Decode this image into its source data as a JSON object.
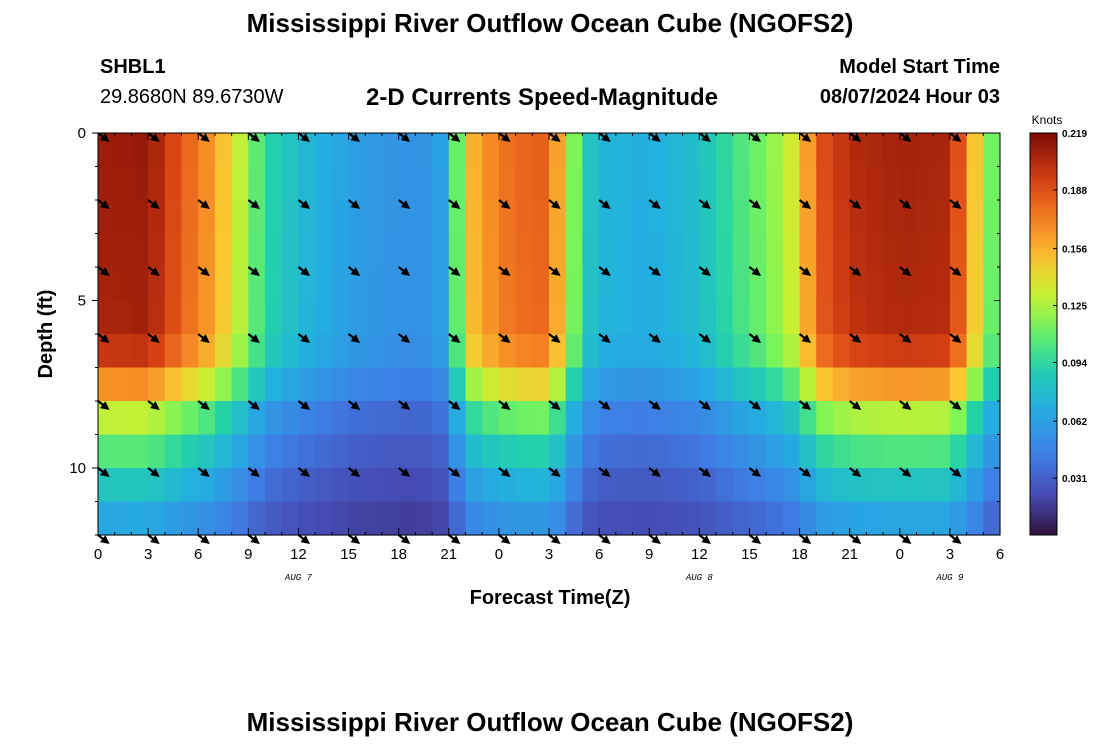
{
  "page": {
    "title": "Mississippi River Outflow Ocean Cube (NGOFS2)",
    "bottom_title": "Mississippi River Outflow Ocean Cube (NGOFS2)",
    "station_id": "SHBL1",
    "station_coords": "29.8680N  89.6730W",
    "plot_label": "2-D Currents Speed-Magnitude",
    "model_start_label": "Model Start Time",
    "model_start_time": "08/07/2024 Hour 03"
  },
  "chart_data": {
    "type": "heatmap",
    "title": "2-D Currents Speed-Magnitude",
    "xlabel": "Forecast Time(Z)",
    "ylabel": "Depth (ft)",
    "colorbar_unit": "Knots",
    "x_tick_labels": [
      "0",
      "3",
      "6",
      "9",
      "12",
      "15",
      "18",
      "21",
      "0",
      "3",
      "6",
      "9",
      "12",
      "15",
      "18",
      "21",
      "0",
      "3",
      "6"
    ],
    "x_hours": [
      0,
      3,
      6,
      9,
      12,
      15,
      18,
      21,
      24,
      27,
      30,
      33,
      36,
      39,
      42,
      45,
      48,
      51,
      54
    ],
    "xlim": [
      0,
      54
    ],
    "date_labels": [
      {
        "hour": 12,
        "text": "AUG 7"
      },
      {
        "hour": 36,
        "text": "AUG 8"
      },
      {
        "hour": 51,
        "text": "AUG 9"
      }
    ],
    "y_tick_labels": [
      "0",
      "5",
      "10"
    ],
    "y_ticks": [
      0,
      5,
      10
    ],
    "ylim": [
      0,
      12
    ],
    "colorbar_ticks": [
      0.219,
      0.188,
      0.156,
      0.125,
      0.094,
      0.062,
      0.031
    ],
    "colorbar_range": [
      0.0,
      0.219
    ],
    "depth_levels": [
      0,
      1,
      2,
      3,
      4,
      5,
      6,
      7,
      8,
      9,
      10,
      11,
      12
    ],
    "speed_profile_time": [
      [
        0,
        0.21
      ],
      [
        3,
        0.212
      ],
      [
        5,
        0.185
      ],
      [
        7,
        0.162
      ],
      [
        8,
        0.14
      ],
      [
        9,
        0.12
      ],
      [
        10,
        0.095
      ],
      [
        12,
        0.078
      ],
      [
        15,
        0.062
      ],
      [
        18,
        0.055
      ],
      [
        20,
        0.056
      ],
      [
        21,
        0.07
      ],
      [
        22,
        0.15
      ],
      [
        24,
        0.175
      ],
      [
        26,
        0.183
      ],
      [
        27,
        0.182
      ],
      [
        28,
        0.14
      ],
      [
        29,
        0.09
      ],
      [
        30,
        0.075
      ],
      [
        33,
        0.07
      ],
      [
        36,
        0.08
      ],
      [
        38,
        0.1
      ],
      [
        40,
        0.115
      ],
      [
        42,
        0.14
      ],
      [
        43,
        0.185
      ],
      [
        45,
        0.203
      ],
      [
        48,
        0.208
      ],
      [
        51,
        0.206
      ],
      [
        52,
        0.17
      ],
      [
        53,
        0.13
      ],
      [
        54,
        0.095
      ]
    ],
    "depth_factor": [
      [
        0,
        1.0
      ],
      [
        6,
        0.98
      ],
      [
        7,
        0.9
      ],
      [
        8,
        0.68
      ],
      [
        9,
        0.55
      ],
      [
        10,
        0.45
      ],
      [
        11,
        0.35
      ],
      [
        12,
        0.28
      ]
    ],
    "arrow_hours": [
      0,
      3,
      6,
      9,
      12,
      15,
      18,
      21,
      24,
      27,
      30,
      33,
      36,
      39,
      42,
      45,
      48,
      51
    ],
    "arrow_depths": [
      0,
      2,
      4,
      6,
      8,
      10,
      12
    ],
    "arrow_direction": "southeast"
  }
}
